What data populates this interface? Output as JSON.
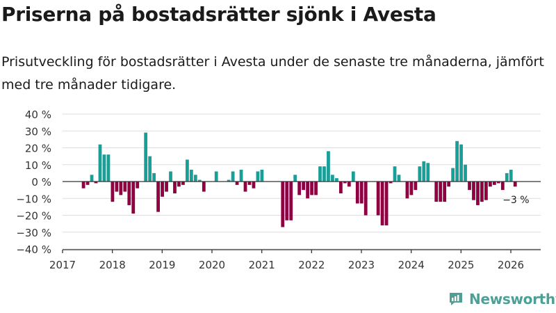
{
  "title": "Priserna på bostadsrätter sjönk i Avesta",
  "subtitle": "Prisutveckling för bostadsrätter i Avesta under de senaste tre månaderna, jämfört med tre månader tidigare.",
  "brand": {
    "name": "Newsworthy",
    "icon": "newsworthy-logo-icon"
  },
  "colors": {
    "positive": "#1a9e98",
    "negative": "#8f0043",
    "grid": "#dddddd",
    "axis": "#333333"
  },
  "chart_data": {
    "type": "bar",
    "ylim": [
      -40,
      40
    ],
    "yticks": [
      -40,
      -30,
      -20,
      -10,
      0,
      10,
      20,
      30,
      40
    ],
    "ytick_labels": [
      "−40 %",
      "−30 %",
      "−20 %",
      "−10 %",
      "0 %",
      "10 %",
      "20 %",
      "30 %",
      "40 %"
    ],
    "xlim": [
      2017,
      2026.6
    ],
    "xticks": [
      2017,
      2018,
      2019,
      2020,
      2021,
      2022,
      2023,
      2024,
      2025,
      2026
    ],
    "xtick_labels": [
      "2017",
      "2018",
      "2019",
      "2020",
      "2021",
      "2022",
      "2023",
      "2024",
      "2025",
      "2026"
    ],
    "series_start": 2017.42,
    "step_months": 1,
    "values": [
      -4,
      -2,
      4,
      -1,
      22,
      16,
      16,
      -12,
      -6,
      -8,
      -6,
      -14,
      -19,
      -4,
      0,
      29,
      15,
      5,
      -18,
      -9,
      -6,
      6,
      -7,
      -3,
      -2,
      13,
      7,
      4,
      1,
      -6,
      0,
      0,
      6,
      0,
      0,
      1,
      6,
      -2,
      7,
      -6,
      -2,
      -4,
      6,
      7,
      0,
      0,
      0,
      0,
      -27,
      -23,
      -23,
      4,
      -8,
      -5,
      -10,
      -8,
      -8,
      9,
      9,
      18,
      4,
      2,
      -7,
      -1,
      -3,
      6,
      -13,
      -13,
      -20,
      0,
      0,
      -20,
      -26,
      -26,
      -1,
      9,
      4,
      0,
      -10,
      -8,
      -5,
      9,
      12,
      11,
      0,
      -12,
      -12,
      -12,
      -3,
      8,
      24,
      22,
      10,
      -5,
      -11,
      -14,
      -12,
      -11,
      -3,
      -2,
      -1,
      -5,
      5,
      7,
      -3
    ],
    "annotation": {
      "text": "−3 %",
      "index": 104
    }
  }
}
